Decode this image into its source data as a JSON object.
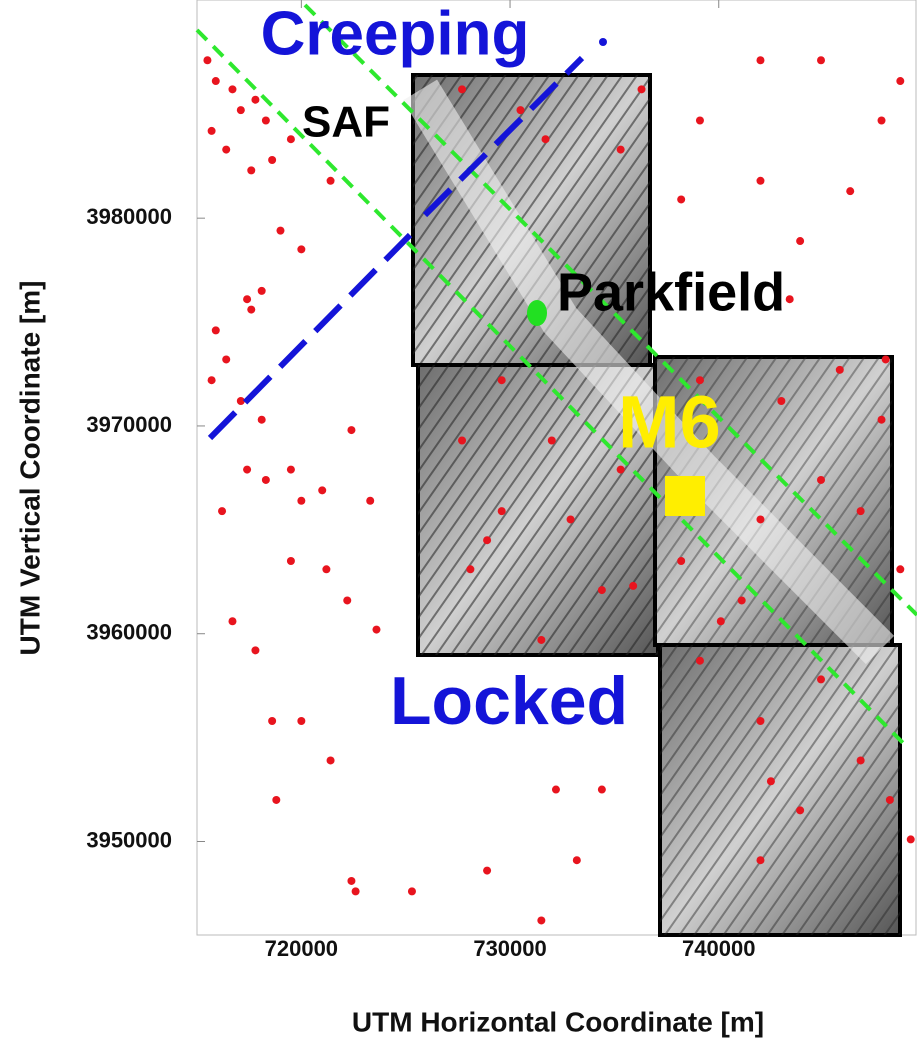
{
  "chart_data": {
    "type": "scatter",
    "x_label": "UTM Horizontal Coordinate [m]",
    "y_label": "UTM Vertical Coordinate [m]",
    "annotations": [
      "Creeping",
      "SAF",
      "Parkfield",
      "M6",
      "Locked"
    ],
    "color": "#e8141e",
    "xlim": [
      715000,
      749500
    ],
    "ylim": [
      3945500,
      3990500
    ],
    "xticks": [
      720000,
      730000,
      740000
    ],
    "yticks": [
      3950000,
      3960000,
      3970000,
      3980000
    ],
    "x": [
      715500,
      715900,
      716700,
      717100,
      717800,
      718300,
      715700,
      716400,
      717600,
      718600,
      719500,
      721400,
      720000,
      719000,
      718100,
      717400,
      717600,
      715900,
      716400,
      715700,
      717100,
      718100,
      717400,
      718300,
      716200,
      720000,
      719500,
      721000,
      722400,
      723300,
      716700,
      717800,
      719500,
      721200,
      722200,
      723600,
      718600,
      720000,
      718800,
      721400,
      722400,
      722600,
      725300,
      728900,
      731500,
      732200,
      733200,
      734400,
      734400,
      735900,
      732900,
      729600,
      728900,
      728100,
      731500,
      727700,
      729600,
      732000,
      735300,
      739100,
      743000,
      745800,
      747800,
      746800,
      744900,
      742000,
      743400,
      743900,
      742000,
      746300,
      747800,
      739100,
      738200,
      736300,
      742000,
      744900,
      748700,
      730500,
      727700,
      731700,
      735300,
      738200,
      739100,
      742000,
      744900,
      746800,
      748200,
      742500,
      743900,
      742000,
      748000,
      748700,
      749200,
      740100,
      741100
    ],
    "values": [
      3987600,
      3986600,
      3986200,
      3985200,
      3985700,
      3984700,
      3984200,
      3983300,
      3982300,
      3982800,
      3983800,
      3981800,
      3978500,
      3979400,
      3976500,
      3976100,
      3975600,
      3974600,
      3973200,
      3972200,
      3971200,
      3970300,
      3967900,
      3967400,
      3965900,
      3966400,
      3967900,
      3966900,
      3969800,
      3966400,
      3960600,
      3959200,
      3963500,
      3963100,
      3961600,
      3960200,
      3955800,
      3955800,
      3952000,
      3953900,
      3948100,
      3947600,
      3947600,
      3948600,
      3946200,
      3952500,
      3949100,
      3952500,
      3962100,
      3962300,
      3965500,
      3965900,
      3964500,
      3963100,
      3959700,
      3969300,
      3972200,
      3969300,
      3967900,
      3972200,
      3971200,
      3972700,
      3970300,
      3965900,
      3967400,
      3965500,
      3976100,
      3978900,
      3981800,
      3981300,
      3984700,
      3984700,
      3980900,
      3986200,
      3987600,
      3987600,
      3986600,
      3985200,
      3986200,
      3983800,
      3983300,
      3963500,
      3958700,
      3955800,
      3957800,
      3953900,
      3952000,
      3952900,
      3951500,
      3949100,
      3973200,
      3963100,
      3950100,
      3960600,
      3961600
    ]
  }
}
